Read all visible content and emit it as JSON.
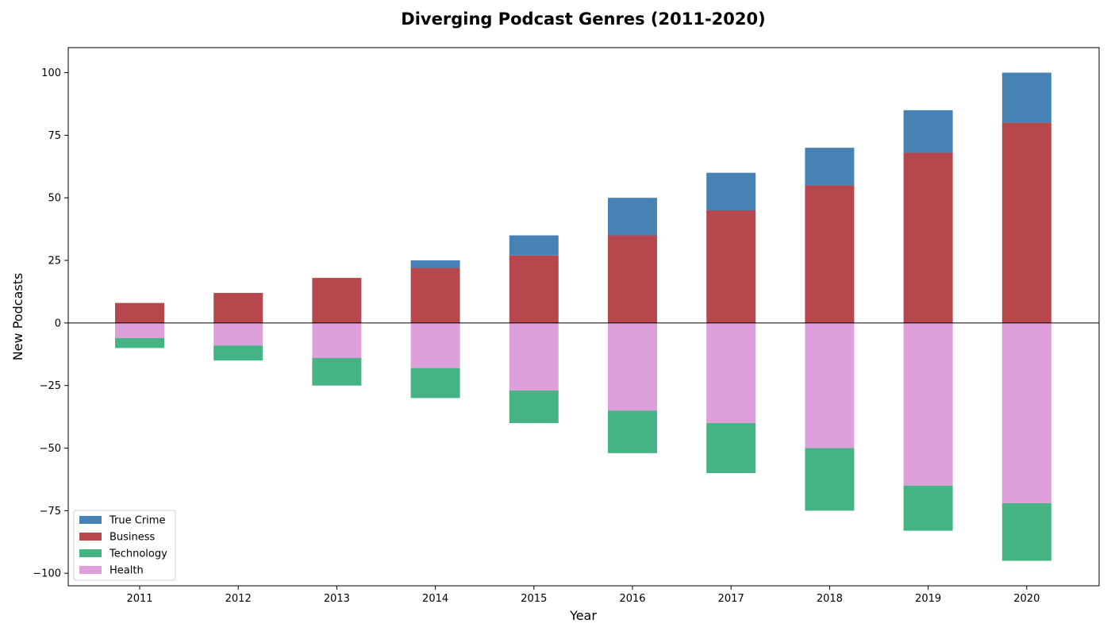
{
  "chart_data": {
    "type": "bar",
    "title": "Diverging Podcast Genres (2011-2020)",
    "xlabel": "Year",
    "ylabel": "New Podcasts",
    "categories": [
      "2011",
      "2012",
      "2013",
      "2014",
      "2015",
      "2016",
      "2017",
      "2018",
      "2019",
      "2020"
    ],
    "ylim": [
      -105,
      110
    ],
    "yticks": [
      -100,
      -75,
      -50,
      -25,
      0,
      25,
      50,
      75,
      100
    ],
    "ytick_labels": [
      "−100",
      "−75",
      "−50",
      "−25",
      "0",
      "25",
      "50",
      "75",
      "100"
    ],
    "stacked": true,
    "grid": false,
    "legend_position": "lower-left",
    "series": [
      {
        "name": "True Crime",
        "color": "#4682b4",
        "values": [
          0,
          0,
          0,
          3,
          8,
          15,
          15,
          15,
          17,
          20
        ]
      },
      {
        "name": "Business",
        "color": "#b5474d",
        "values": [
          8,
          12,
          18,
          22,
          27,
          35,
          45,
          55,
          68,
          80
        ]
      },
      {
        "name": "Technology",
        "color": "#45b383",
        "values": [
          -4,
          -6,
          -11,
          -12,
          -13,
          -17,
          -20,
          -25,
          -18,
          -23
        ]
      },
      {
        "name": "Health",
        "color": "#dda0dd",
        "values": [
          -6,
          -9,
          -14,
          -18,
          -27,
          -35,
          -40,
          -50,
          -65,
          -72
        ]
      }
    ]
  }
}
